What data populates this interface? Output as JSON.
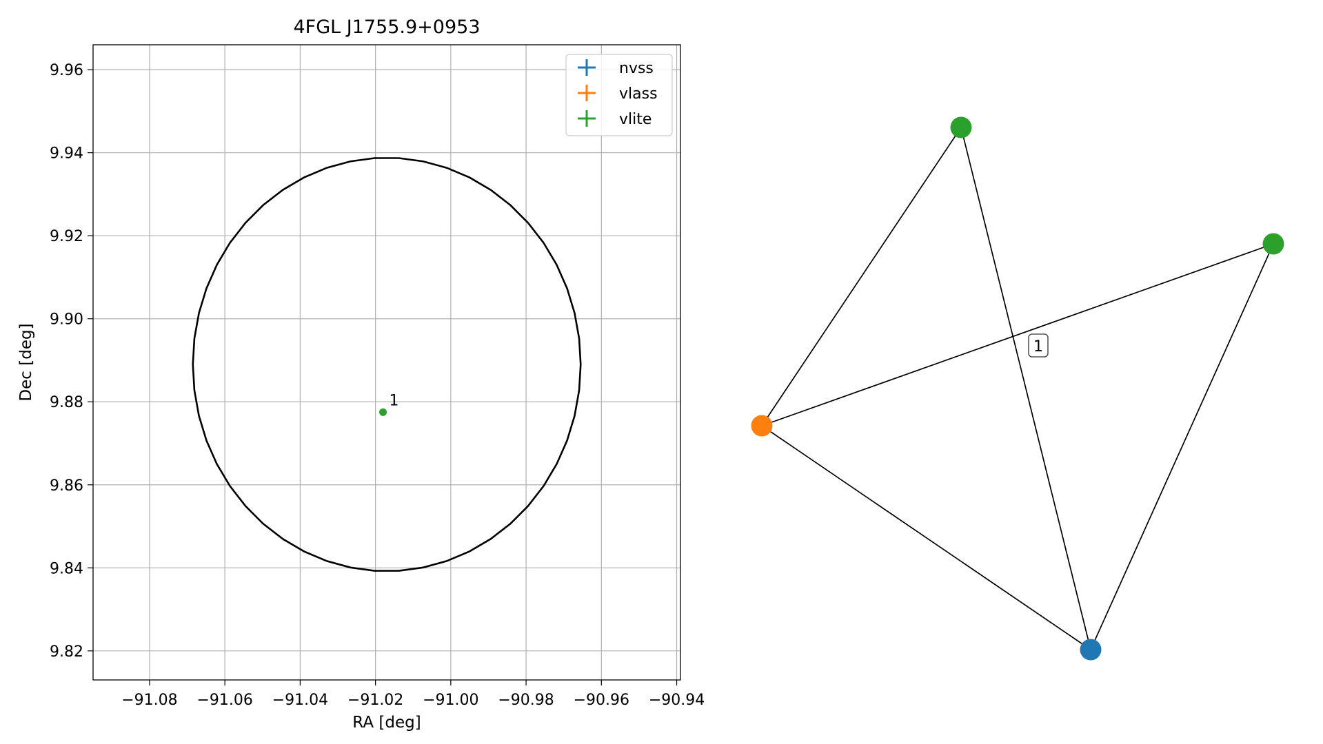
{
  "chart_data": [
    {
      "type": "scatter",
      "title": "4FGL J1755.9+0953",
      "xlabel": "RA [deg]",
      "ylabel": "Dec [deg]",
      "xlim": [
        -91.095,
        -90.939
      ],
      "ylim": [
        9.813,
        9.966
      ],
      "xticks": [
        -91.08,
        -91.06,
        -91.04,
        -91.02,
        -91.0,
        -90.98,
        -90.96,
        -90.94
      ],
      "xtick_labels": [
        "−91.08",
        "−91.06",
        "−91.04",
        "−91.02",
        "−91.00",
        "−90.98",
        "−90.96",
        "−90.94"
      ],
      "yticks": [
        9.82,
        9.84,
        9.86,
        9.88,
        9.9,
        9.92,
        9.94,
        9.96
      ],
      "ytick_labels": [
        "9.82",
        "9.84",
        "9.86",
        "9.88",
        "9.90",
        "9.92",
        "9.94",
        "9.96"
      ],
      "grid": true,
      "legend_position": "top-right",
      "series": [
        {
          "name": "nvss",
          "color": "#1f77b4",
          "points": []
        },
        {
          "name": "vlass",
          "color": "#ff7f0e",
          "points": []
        },
        {
          "name": "vlite",
          "color": "#2ca02c",
          "points": [
            {
              "x": -91.018,
              "y": 9.8775,
              "label": "1"
            }
          ]
        }
      ],
      "region": {
        "shape": "circle",
        "center": [
          -91.017,
          9.889
        ],
        "radius_ra": 0.0515,
        "radius_dec": 0.0498,
        "color": "#000000"
      }
    },
    {
      "type": "network",
      "nodes": [
        {
          "id": "n1",
          "color": "#2ca02c"
        },
        {
          "id": "n2",
          "color": "#2ca02c"
        },
        {
          "id": "n3",
          "color": "#ff7f0e"
        },
        {
          "id": "n4",
          "color": "#1f77b4"
        }
      ],
      "edges": [
        [
          "n3",
          "n1"
        ],
        [
          "n3",
          "n2"
        ],
        [
          "n3",
          "n4"
        ],
        [
          "n1",
          "n4"
        ],
        [
          "n2",
          "n4"
        ]
      ],
      "edge_label": "1"
    }
  ]
}
